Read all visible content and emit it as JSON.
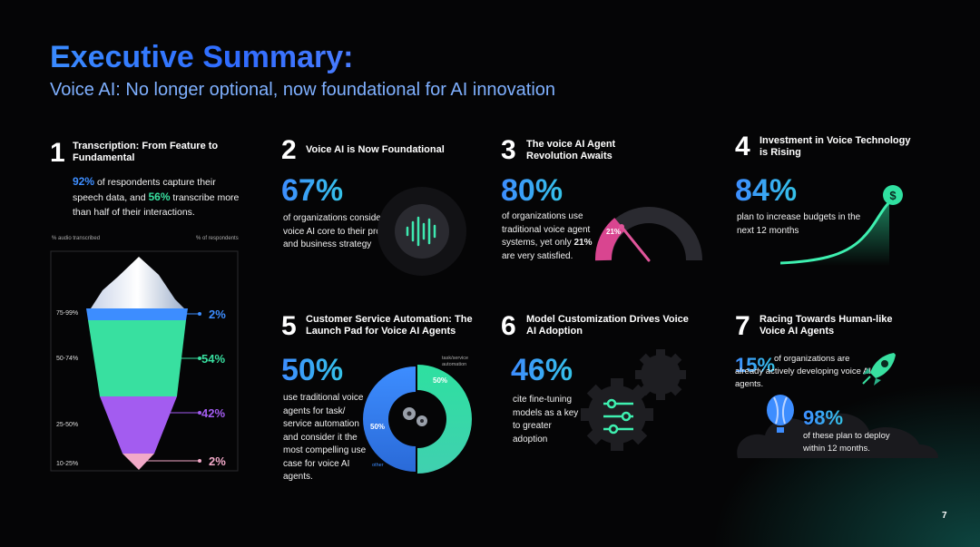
{
  "header": {
    "title": "Executive Summary:",
    "subtitle": "Voice AI: No longer optional, now foundational for AI innovation"
  },
  "s1": {
    "num": "1",
    "title": "Transcription: From Feature to Fundamental",
    "stat1": "92%",
    "text1": " of respondents capture their speech data, and ",
    "stat2": "56%",
    "text2": " transcribe more than half of their interactions.",
    "axis_left": "% audio transcribed",
    "axis_right": "% of respondents",
    "bands": [
      "75-99%",
      "50-74%",
      "25-50%",
      "10-25%"
    ],
    "values": [
      "2%",
      "54%",
      "42%",
      "2%"
    ]
  },
  "s2": {
    "num": "2",
    "title": "Voice AI is Now Foundational",
    "stat": "67%",
    "text": "of organizations consider voice AI core to their product and business strategy"
  },
  "s3": {
    "num": "3",
    "title": "The voice AI Agent Revolution Awaits",
    "stat": "80%",
    "text1": "of organizations use traditional voice agent systems, yet only ",
    "stat2": "21%",
    "text2": " are very satisfied.",
    "gauge_label": "21%"
  },
  "s4": {
    "num": "4",
    "title": "Investment in Voice Technology is Rising",
    "stat": "84%",
    "text": "plan to increase budgets in the next 12 months"
  },
  "s5": {
    "num": "5",
    "title": "Customer Service Automation: The Launch Pad for Voice AI Agents",
    "stat": "50%",
    "text": "use traditional voice agents for task/ service automation and consider it the most compelling use case for voice AI agents.",
    "donut_left": "50%",
    "donut_right": "50%",
    "label_top": "task/service automation",
    "label_bottom": "other"
  },
  "s6": {
    "num": "6",
    "title": "Model Customization Drives Voice AI Adoption",
    "stat": "46%",
    "text": "cite fine-tuning models as a key to greater adoption"
  },
  "s7": {
    "num": "7",
    "title": "Racing Towards Human-like Voice AI Agents",
    "stat1": "15%",
    "text1": "of organizations are already actively developing voice AI agents.",
    "stat2": "98%",
    "text2": "of these plan to deploy within 12 months."
  },
  "footer": {
    "page": "7"
  },
  "colors": {
    "blue": "#3d8dff",
    "green": "#38e0a0",
    "purple": "#a35cf0",
    "pink": "#e0559a"
  }
}
